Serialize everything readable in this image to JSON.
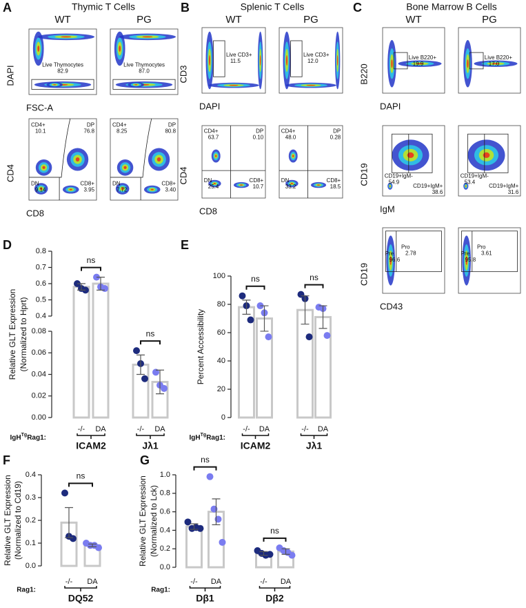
{
  "flow": {
    "condition_colors": [
      "#55627f",
      "#c9423f"
    ],
    "panels": [
      {
        "label": "A",
        "title": "Thymic T Cells",
        "conditions": [
          "WT",
          "PG"
        ],
        "rows": [
          {
            "ylabel": "DAPI",
            "xlabel": "FSC-A",
            "plots": [
              {
                "gates": [
                  {
                    "name": "Live Thymocytes",
                    "value": "82.9"
                  }
                ]
              },
              {
                "gates": [
                  {
                    "name": "Live Thymocytes",
                    "value": "87.0"
                  }
                ]
              }
            ]
          },
          {
            "ylabel": "CD4",
            "xlabel": "CD8",
            "plots": [
              {
                "gates": [
                  {
                    "name": "CD4+",
                    "value": "10.1"
                  },
                  {
                    "name": "DP",
                    "value": "76.8"
                  },
                  {
                    "name": "DN",
                    "value": "9.14"
                  },
                  {
                    "name": "CD8+",
                    "value": "3.95"
                  }
                ]
              },
              {
                "gates": [
                  {
                    "name": "CD4+",
                    "value": "8.25"
                  },
                  {
                    "name": "DP",
                    "value": "80.8"
                  },
                  {
                    "name": "DN",
                    "value": "7.72"
                  },
                  {
                    "name": "CD8+",
                    "value": "3.40"
                  }
                ]
              }
            ]
          }
        ]
      },
      {
        "label": "B",
        "title": "Splenic T Cells",
        "conditions": [
          "WT",
          "PG"
        ],
        "rows": [
          {
            "ylabel": "CD3",
            "xlabel": "DAPI",
            "plots": [
              {
                "gates": [
                  {
                    "name": "Live CD3+",
                    "value": "11.5"
                  }
                ]
              },
              {
                "gates": [
                  {
                    "name": "Live CD3+",
                    "value": "12.0"
                  }
                ]
              }
            ]
          },
          {
            "ylabel": "CD4",
            "xlabel": "CD8",
            "plots": [
              {
                "gates": [
                  {
                    "name": "CD4+",
                    "value": "63.7"
                  },
                  {
                    "name": "DP",
                    "value": "0.10"
                  },
                  {
                    "name": "DN",
                    "value": "25.4"
                  },
                  {
                    "name": "CD8+",
                    "value": "10.7"
                  }
                ]
              },
              {
                "gates": [
                  {
                    "name": "CD4+",
                    "value": "48.0"
                  },
                  {
                    "name": "DP",
                    "value": "0.28"
                  },
                  {
                    "name": "DN",
                    "value": "33.2"
                  },
                  {
                    "name": "CD8+",
                    "value": "18.5"
                  }
                ]
              }
            ]
          }
        ]
      },
      {
        "label": "C",
        "title": "Bone Marrow B Cells",
        "conditions": [
          "WT",
          "PG"
        ],
        "rows": [
          {
            "ylabel": "B220",
            "xlabel": "DAPI",
            "plots": [
              {
                "gates": [
                  {
                    "name": "Live B220+",
                    "value": "19.9"
                  }
                ]
              },
              {
                "gates": [
                  {
                    "name": "Live B220+",
                    "value": "17.0"
                  }
                ]
              }
            ]
          },
          {
            "ylabel": "CD19",
            "xlabel": "IgM",
            "plots": [
              {
                "gates": [
                  {
                    "name": "CD19+IgM-",
                    "value": "54.9"
                  },
                  {
                    "name": "CD19+IgM+",
                    "value": "38.6"
                  }
                ]
              },
              {
                "gates": [
                  {
                    "name": "CD19+IgM-",
                    "value": "53.4"
                  },
                  {
                    "name": "CD19+IgM+",
                    "value": "31.6"
                  }
                ]
              }
            ]
          },
          {
            "ylabel": "CD19",
            "xlabel": "CD43",
            "plots": [
              {
                "gates": [
                  {
                    "name": "Pre",
                    "value": "96.6"
                  },
                  {
                    "name": "Pro",
                    "value": "2.78"
                  }
                ]
              },
              {
                "gates": [
                  {
                    "name": "Pre",
                    "value": "95.8"
                  },
                  {
                    "name": "Pro",
                    "value": "3.61"
                  }
                ]
              }
            ]
          }
        ]
      }
    ]
  },
  "chart_data": [
    {
      "type": "bar",
      "panel": "D",
      "ylabel": [
        "Relative GLT Expression",
        "(Normalized to Hprt)"
      ],
      "row_label": [
        "IgH",
        "Tg",
        "Rag1:"
      ],
      "categories": [
        "ICAM2",
        "Jλ1"
      ],
      "segments": [
        {
          "ylim": [
            0,
            0.08
          ],
          "yticks": [
            {
              "value": 0,
              "label": "0.00"
            },
            0.02,
            0.04,
            0.06,
            0.08
          ]
        },
        {
          "ylim": [
            0.4,
            0.8
          ],
          "yticks": [
            0.4,
            0.5,
            0.6,
            0.7,
            0.8
          ]
        }
      ],
      "series": [
        {
          "name": "-/-",
          "color": "#1d2b7d",
          "values": [
            0.58,
            0.049
          ],
          "errors": [
            0.02,
            0.009
          ],
          "points": [
            [
              0.6,
              0.57,
              0.56
            ],
            [
              0.062,
              0.05,
              0.036
            ]
          ]
        },
        {
          "name": "DA",
          "color": "#7a7cf0",
          "values": [
            0.6,
            0.033
          ],
          "errors": [
            0.04,
            0.011
          ],
          "points": [
            [
              0.64,
              0.58,
              0.57
            ],
            [
              0.042,
              0.03,
              0.027
            ]
          ]
        }
      ],
      "significance": [
        "ns",
        "ns"
      ]
    },
    {
      "type": "bar",
      "panel": "E",
      "ylabel": "Percent Accessibility",
      "row_label": [
        "IgH",
        "Tg",
        "Rag1:"
      ],
      "categories": [
        "ICAM2",
        "Jλ1"
      ],
      "ylim": [
        0,
        100
      ],
      "yticks": [
        0,
        20,
        40,
        60,
        80,
        100
      ],
      "series": [
        {
          "name": "-/-",
          "color": "#1d2b7d",
          "values": [
            78,
            76
          ],
          "errors": [
            5,
            10
          ],
          "points": [
            [
              86,
              79,
              69
            ],
            [
              87,
              84,
              57
            ]
          ]
        },
        {
          "name": "DA",
          "color": "#7a7cf0",
          "values": [
            70,
            71
          ],
          "errors": [
            9,
            8
          ],
          "points": [
            [
              79,
              74,
              57
            ],
            [
              78,
              77,
              58
            ]
          ]
        }
      ],
      "significance": [
        "ns",
        "ns"
      ]
    },
    {
      "type": "bar",
      "panel": "F",
      "ylabel": [
        "Relative GLT Expression",
        "(Normalized to Cd19)"
      ],
      "row_label": "Rag1:",
      "categories": [
        "DQ52"
      ],
      "ylim": [
        0,
        0.4
      ],
      "yticks": [
        {
          "value": 0,
          "label": "0.0"
        },
        0.1,
        0.2,
        0.3,
        0.4
      ],
      "series": [
        {
          "name": "-/-",
          "color": "#1d2b7d",
          "values": [
            0.19
          ],
          "errors": [
            0.066
          ],
          "points": [
            [
              0.32,
              0.13,
              0.12
            ]
          ]
        },
        {
          "name": "DA",
          "color": "#7a7cf0",
          "values": [
            0.09
          ],
          "errors": [
            0.006
          ],
          "points": [
            [
              0.1,
              0.09,
              0.09,
              0.08
            ]
          ]
        }
      ],
      "significance": [
        "ns"
      ]
    },
    {
      "type": "bar",
      "panel": "G",
      "ylabel": [
        "Relative GLT Expression",
        "(Normalized to Lck)"
      ],
      "row_label": "Rag1:",
      "categories": [
        "Dβ1",
        "Dβ2"
      ],
      "ylim": [
        0,
        1
      ],
      "yticks": [
        {
          "value": 0,
          "label": "0.0"
        },
        0.2,
        0.4,
        0.6,
        0.8,
        {
          "value": 1,
          "label": "1.0"
        }
      ],
      "series": [
        {
          "name": "-/-",
          "color": "#1d2b7d",
          "values": [
            0.44,
            0.15
          ],
          "errors": [
            0.03,
            0.02
          ],
          "points": [
            [
              0.49,
              0.42,
              0.43,
              0.42
            ],
            [
              0.18,
              0.15,
              0.13,
              0.14
            ]
          ]
        },
        {
          "name": "DA",
          "color": "#7a7cf0",
          "values": [
            0.6,
            0.17
          ],
          "errors": [
            0.14,
            0.03
          ],
          "points": [
            [
              0.98,
              0.63,
              0.52,
              0.27
            ],
            [
              0.21,
              0.18,
              0.16,
              0.13
            ]
          ]
        }
      ],
      "significance": [
        "ns",
        "ns"
      ]
    }
  ]
}
